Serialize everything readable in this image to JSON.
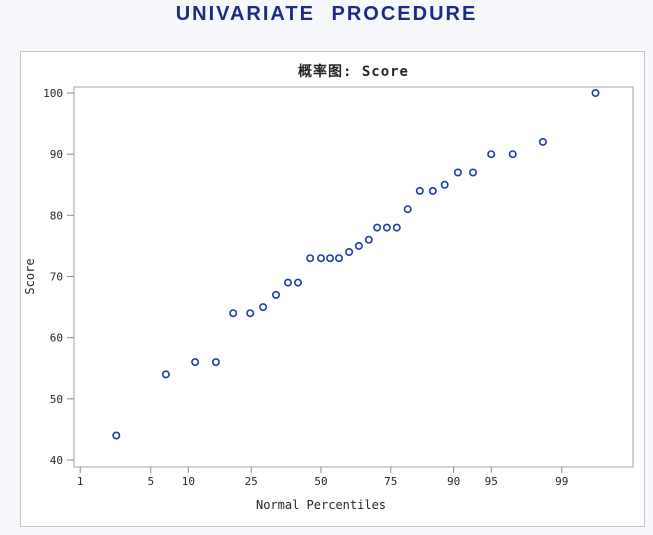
{
  "header": {
    "title": "UNIVARIATE PROCEDURE"
  },
  "colors": {
    "page_background": "#f7f8fb",
    "panel_background": "#ffffff",
    "panel_border": "#c6c6c6",
    "procedure_title": "#1b2b87",
    "axis_frame": "#a3a3a3",
    "tick_mark": "#8a8a8a",
    "tick_label": "#262626",
    "marker": "#1e3da3"
  },
  "chart_data": {
    "type": "scatter",
    "title": "概率图: Score",
    "xlabel": "Normal Percentiles",
    "ylabel": "Score",
    "x_scale": "normal-probability",
    "x_ticks": [
      1,
      5,
      10,
      25,
      50,
      75,
      90,
      95,
      99
    ],
    "y_ticks": [
      40,
      50,
      60,
      70,
      80,
      90,
      100
    ],
    "ylim": [
      40,
      100
    ],
    "grid": false,
    "legend": "none",
    "marker": "open-circle",
    "points": [
      {
        "percentile": 2.4,
        "score": 44
      },
      {
        "percentile": 6.7,
        "score": 54
      },
      {
        "percentile": 11.2,
        "score": 56
      },
      {
        "percentile": 15.5,
        "score": 56
      },
      {
        "percentile": 19.8,
        "score": 64
      },
      {
        "percentile": 24.7,
        "score": 64
      },
      {
        "percentile": 28.8,
        "score": 65
      },
      {
        "percentile": 33.2,
        "score": 67
      },
      {
        "percentile": 37.5,
        "score": 69
      },
      {
        "percentile": 41.2,
        "score": 69
      },
      {
        "percentile": 45.8,
        "score": 73
      },
      {
        "percentile": 50.0,
        "score": 73
      },
      {
        "percentile": 53.5,
        "score": 73
      },
      {
        "percentile": 56.9,
        "score": 73
      },
      {
        "percentile": 60.7,
        "score": 74
      },
      {
        "percentile": 64.3,
        "score": 75
      },
      {
        "percentile": 67.8,
        "score": 76
      },
      {
        "percentile": 70.6,
        "score": 78
      },
      {
        "percentile": 73.8,
        "score": 78
      },
      {
        "percentile": 76.8,
        "score": 78
      },
      {
        "percentile": 79.9,
        "score": 81
      },
      {
        "percentile": 83.0,
        "score": 84
      },
      {
        "percentile": 86.0,
        "score": 84
      },
      {
        "percentile": 88.4,
        "score": 85
      },
      {
        "percentile": 90.7,
        "score": 87
      },
      {
        "percentile": 92.9,
        "score": 87
      },
      {
        "percentile": 95.0,
        "score": 90
      },
      {
        "percentile": 96.8,
        "score": 90
      },
      {
        "percentile": 98.4,
        "score": 92
      },
      {
        "percentile": 99.6,
        "score": 100
      }
    ]
  }
}
